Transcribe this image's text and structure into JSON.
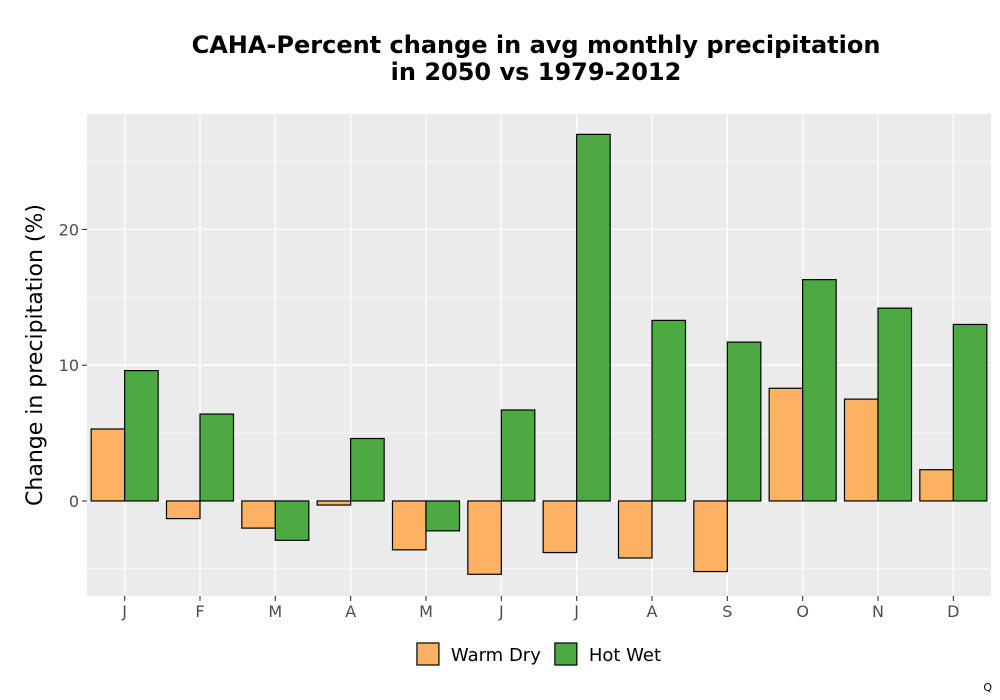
{
  "chart_data": {
    "type": "bar",
    "title_line1": "CAHA-Percent change in avg monthly precipitation",
    "title_line2": "in 2050 vs 1979-2012",
    "xlabel": "",
    "ylabel": "Change in precipitation (%)",
    "categories": [
      "J",
      "F",
      "M",
      "A",
      "M",
      "J",
      "J",
      "A",
      "S",
      "O",
      "N",
      "D"
    ],
    "series": [
      {
        "name": "Warm Dry",
        "color": "#FDB163",
        "values": [
          5.3,
          -1.3,
          -2.0,
          -0.3,
          -3.6,
          -5.4,
          -3.8,
          -4.2,
          -5.2,
          8.3,
          7.5,
          2.3
        ]
      },
      {
        "name": "Hot Wet",
        "color": "#4DAA42",
        "values": [
          9.6,
          6.4,
          -2.9,
          4.6,
          -2.2,
          6.7,
          27.0,
          13.3,
          11.7,
          16.3,
          14.2,
          13.0
        ]
      }
    ],
    "yticks": [
      0,
      10,
      20
    ],
    "ylim": [
      -7,
      28.5
    ],
    "grid": true,
    "legend_position": "bottom",
    "panel_background": "#EBEBEB"
  },
  "corner_mark": "Q"
}
